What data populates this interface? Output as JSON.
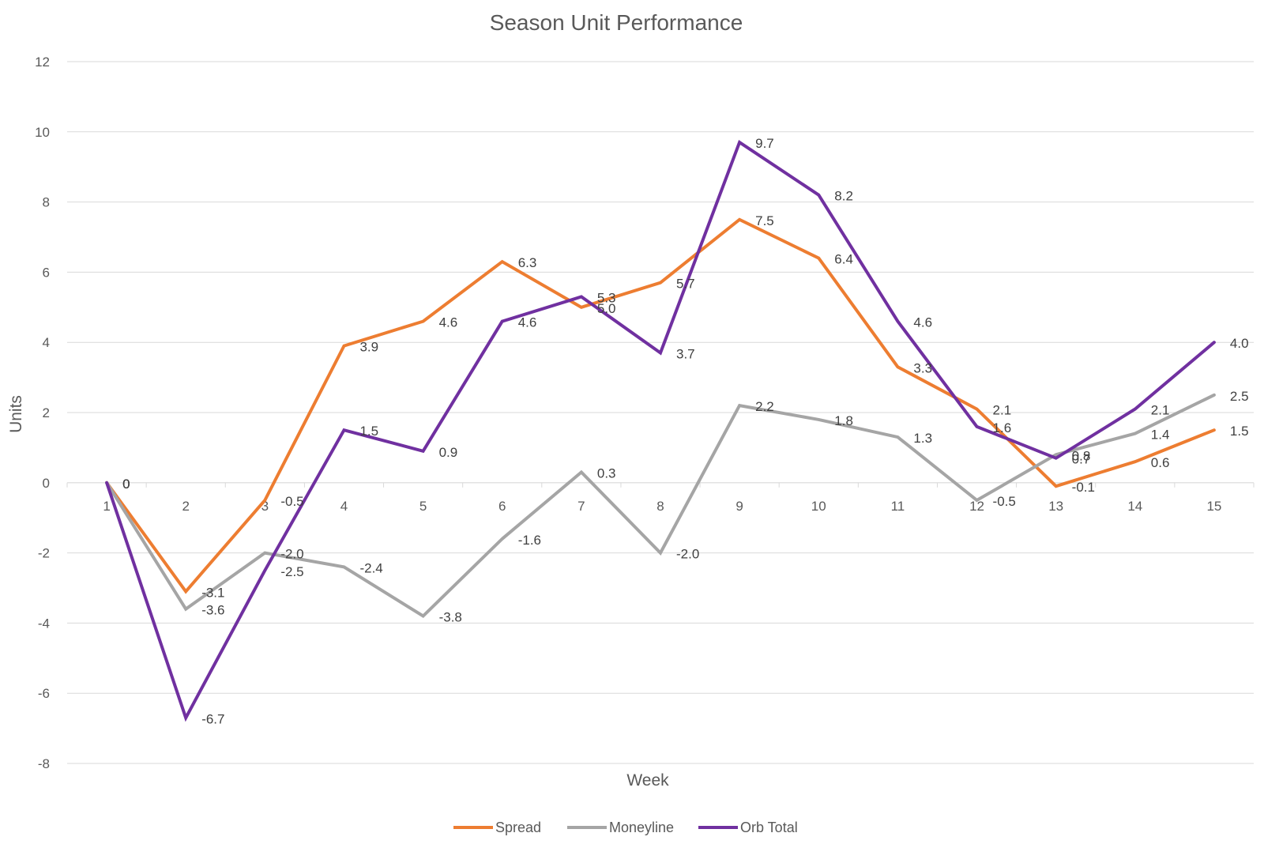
{
  "chart_data": {
    "type": "line",
    "title": "Season Unit Performance",
    "xlabel": "Week",
    "ylabel": "Units",
    "ylim": [
      -8,
      12
    ],
    "yticks": [
      -8,
      -6,
      -4,
      -2,
      0,
      2,
      4,
      6,
      8,
      10,
      12
    ],
    "categories": [
      "1",
      "2",
      "3",
      "4",
      "5",
      "6",
      "7",
      "8",
      "9",
      "10",
      "11",
      "12",
      "13",
      "14",
      "15"
    ],
    "grid": true,
    "legend_position": "bottom",
    "series": [
      {
        "name": "Spread",
        "color": "#ed7d31",
        "values": [
          0,
          -3.1,
          -0.5,
          3.9,
          4.6,
          6.3,
          5.0,
          5.7,
          7.5,
          6.4,
          3.3,
          2.1,
          -0.1,
          0.6,
          1.5
        ],
        "labels": [
          "0",
          "-3.1",
          "-0.5",
          "3.9",
          "4.6",
          "6.3",
          "5.0",
          "5.7",
          "7.5",
          "6.4",
          "3.3",
          "2.1",
          "-0.1",
          "0.6",
          "1.5"
        ]
      },
      {
        "name": "Moneyline",
        "color": "#a5a5a5",
        "values": [
          0,
          -3.6,
          -2.0,
          -2.4,
          -3.8,
          -1.6,
          0.3,
          -2.0,
          2.2,
          1.8,
          1.3,
          -0.5,
          0.8,
          1.4,
          2.5
        ],
        "labels": [
          "0",
          "-3.6",
          "-2.0",
          "-2.4",
          "-3.8",
          "-1.6",
          "0.3",
          "-2.0",
          "2.2",
          "1.8",
          "1.3",
          "-0.5",
          "0.8",
          "1.4",
          "2.5"
        ]
      },
      {
        "name": "Orb Total",
        "color": "#7030a0",
        "values": [
          0,
          -6.7,
          -2.5,
          1.5,
          0.9,
          4.6,
          5.3,
          3.7,
          9.7,
          8.2,
          4.6,
          1.6,
          0.7,
          2.1,
          4.0
        ],
        "labels": [
          "0",
          "-6.7",
          "-2.5",
          "1.5",
          "0.9",
          "4.6",
          "5.3",
          "3.7",
          "9.7",
          "8.2",
          "4.6",
          "1.6",
          "0.7",
          "2.1",
          "4.0"
        ]
      }
    ]
  }
}
